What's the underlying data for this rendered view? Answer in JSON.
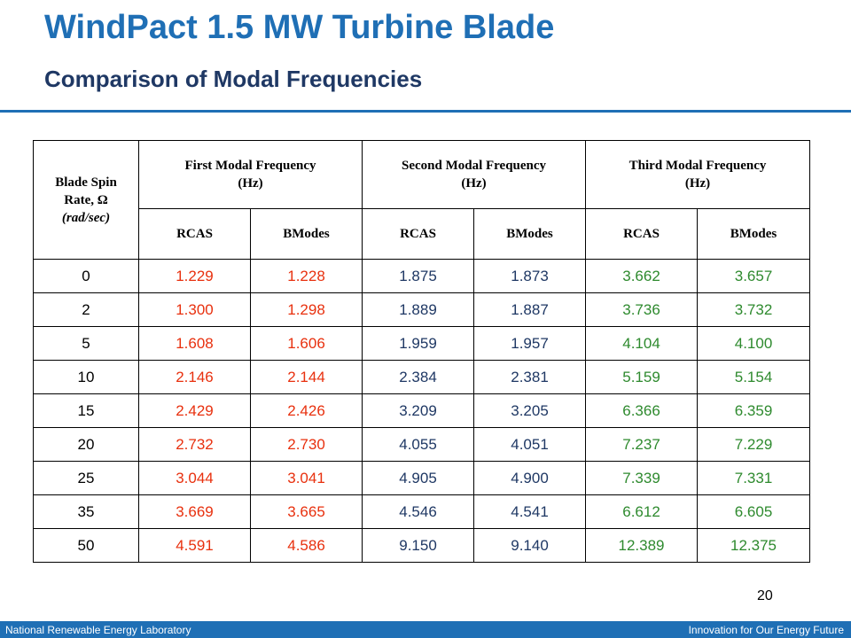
{
  "title": "WindPact 1.5 MW Turbine Blade",
  "subtitle": "Comparison of Modal Frequencies",
  "table": {
    "spin_header": {
      "line1": "Blade Spin",
      "line2": "Rate, Ω",
      "line3": "(rad/sec)"
    },
    "group_headers": [
      {
        "line1": "First Modal Frequency",
        "line2": "(Hz)"
      },
      {
        "line1": "Second Modal Frequency",
        "line2": "(Hz)"
      },
      {
        "line1": "Third Modal Frequency",
        "line2": "(Hz)"
      }
    ],
    "sub_headers": [
      "RCAS",
      "BModes",
      "RCAS",
      "BModes",
      "RCAS",
      "BModes"
    ],
    "rows": [
      [
        "0",
        "1.229",
        "1.228",
        "1.875",
        "1.873",
        "3.662",
        "3.657"
      ],
      [
        "2",
        "1.300",
        "1.298",
        "1.889",
        "1.887",
        "3.736",
        "3.732"
      ],
      [
        "5",
        "1.608",
        "1.606",
        "1.959",
        "1.957",
        "4.104",
        "4.100"
      ],
      [
        "10",
        "2.146",
        "2.144",
        "2.384",
        "2.381",
        "5.159",
        "5.154"
      ],
      [
        "15",
        "2.429",
        "2.426",
        "3.209",
        "3.205",
        "6.366",
        "6.359"
      ],
      [
        "20",
        "2.732",
        "2.730",
        "4.055",
        "4.051",
        "7.237",
        "7.229"
      ],
      [
        "25",
        "3.044",
        "3.041",
        "4.905",
        "4.900",
        "7.339",
        "7.331"
      ],
      [
        "35",
        "3.669",
        "3.665",
        "4.546",
        "4.541",
        "6.612",
        "6.605"
      ],
      [
        "50",
        "4.591",
        "4.586",
        "9.150",
        "9.140",
        "12.389",
        "12.375"
      ]
    ]
  },
  "page_number": "20",
  "footer": {
    "left": "National Renewable Energy Laboratory",
    "right": "Innovation for Our Energy Future"
  },
  "colors": {
    "title_blue": "#1f6fb5",
    "first_modal": "#e8300e",
    "second_modal": "#1f3864",
    "third_modal": "#2e8a2e"
  }
}
